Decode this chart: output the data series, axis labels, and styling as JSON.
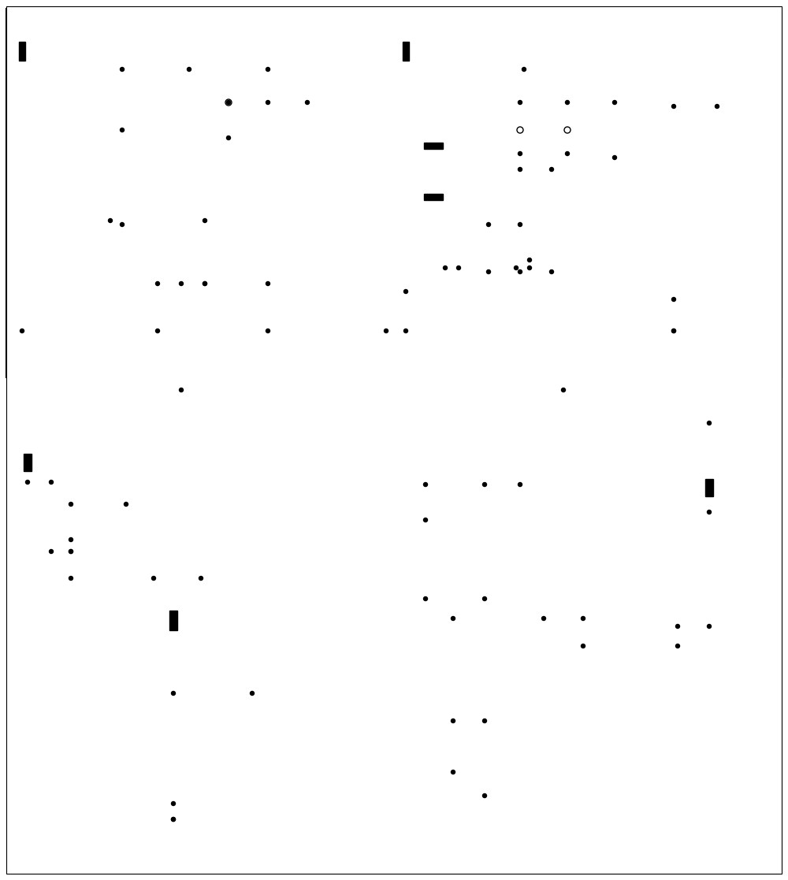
{
  "bg_color": "#ffffff",
  "line_color": "#000000",
  "lw": 1.0,
  "fs": 5.5
}
